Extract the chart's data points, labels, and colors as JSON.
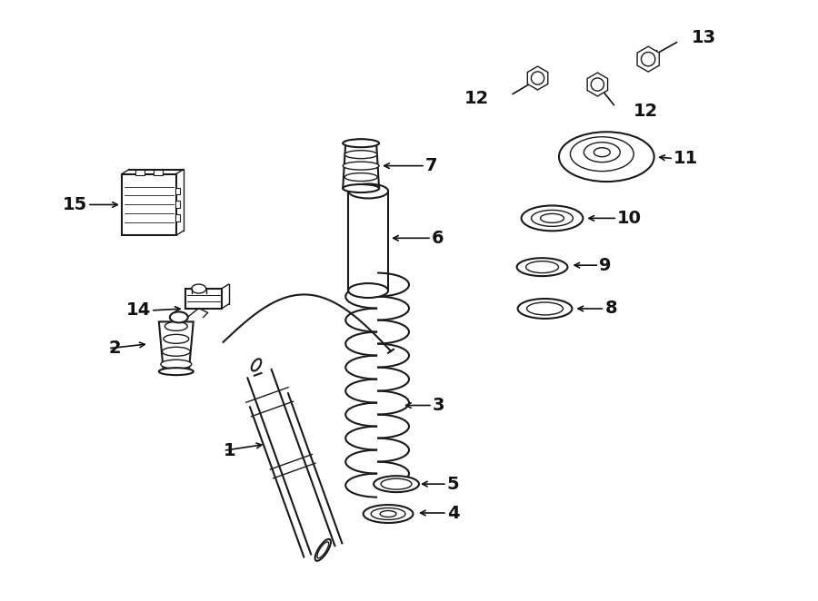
{
  "bg_color": "#ffffff",
  "line_color": "#1a1a1a",
  "label_color": "#111111",
  "label_fontsize": 14,
  "arrow_color": "#111111"
}
